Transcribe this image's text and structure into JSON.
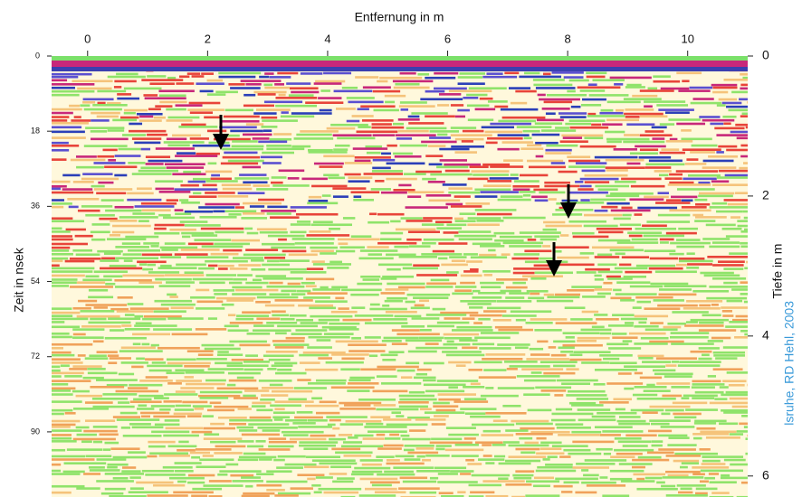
{
  "chart_data": {
    "type": "radargram",
    "xlabel": "Entfernung in m",
    "ylabel": "Zeit in nsek",
    "y2label": "Tiefe in m",
    "xlim": [
      -0.6,
      11.0
    ],
    "xticks": [
      0,
      2,
      4,
      6,
      8,
      10
    ],
    "ylim": [
      0,
      105.6
    ],
    "yticks": [
      0,
      18,
      36,
      54,
      72,
      90
    ],
    "y2lim": [
      0,
      6.3
    ],
    "y2ticks": [
      0,
      2,
      4,
      6
    ],
    "credit": "lsruhe, RD Hehl, 2003"
  }
}
